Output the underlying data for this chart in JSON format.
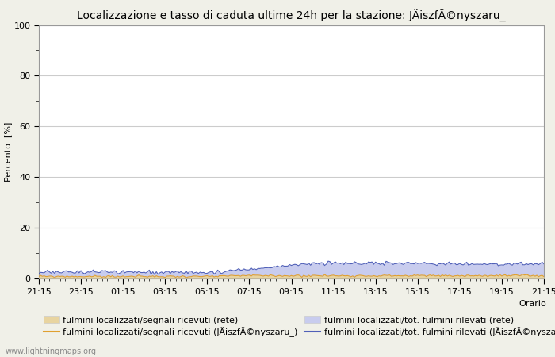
{
  "title": "Localizzazione e tasso di caduta ultime 24h per la stazione: JÄiszfÃ©nyszaru_",
  "ylabel": "Percento  [%]",
  "xlabel_right": "Orario",
  "yticks_major": [
    0,
    20,
    40,
    60,
    80,
    100
  ],
  "yticks_minor": [
    10,
    30,
    50,
    70,
    90
  ],
  "xtick_labels": [
    "21:15",
    "23:15",
    "01:15",
    "03:15",
    "05:15",
    "07:15",
    "09:15",
    "11:15",
    "13:15",
    "15:15",
    "17:15",
    "19:15",
    "21:15"
  ],
  "n_points": 289,
  "ylim": [
    0,
    100
  ],
  "fill_rete_color": "#e8d4a0",
  "fill_rete_alpha": 1.0,
  "fill_local_color": "#c8ccee",
  "fill_local_alpha": 1.0,
  "line_rete_color": "#e0a030",
  "line_local_color": "#5060b8",
  "plot_bg_color": "#ffffff",
  "fig_bg_color": "#f0f0e8",
  "grid_color": "#cccccc",
  "spine_color": "#999999",
  "watermark": "www.lightningmaps.org",
  "title_fontsize": 10,
  "label_fontsize": 8,
  "tick_fontsize": 8,
  "legend_fontsize": 8,
  "legend": {
    "label1": "fulmini localizzati/segnali ricevuti (rete)",
    "label2": "fulmini localizzati/segnali ricevuti (JÄiszfÃ©nyszaru_)",
    "label3": "fulmini localizzati/tot. fulmini rilevati (rete)",
    "label4": "fulmini localizzati/tot. fulmini rilevati (JÄiszfÃ©nyszaru_)"
  }
}
